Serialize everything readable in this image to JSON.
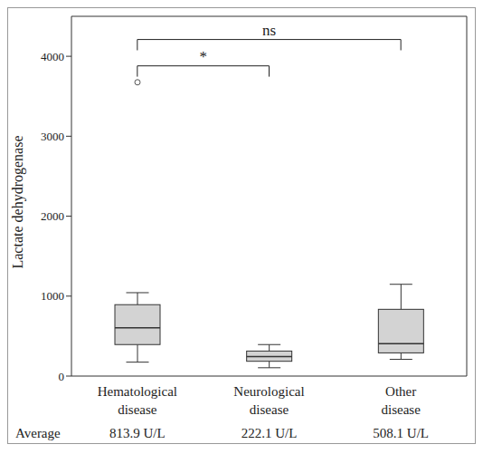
{
  "chart_data": {
    "type": "box",
    "categories": [
      "Hematological disease",
      "Neurological disease",
      "Other disease"
    ],
    "boxes": [
      {
        "min": 174,
        "q1": 394,
        "median": 603,
        "q3": 893,
        "max": 1043,
        "outliers": [
          3675
        ]
      },
      {
        "min": 104,
        "q1": 185,
        "median": 243,
        "q3": 313,
        "max": 394,
        "outliers": []
      },
      {
        "min": 209,
        "q1": 290,
        "median": 406,
        "q3": 835,
        "max": 1148,
        "outliers": []
      }
    ],
    "y_label": "Lactate dehydrogenase",
    "ylim": [
      0,
      4500
    ],
    "yticks": [
      0,
      1000,
      2000,
      3000,
      4000
    ],
    "color": "#d3d3d3",
    "comparisons": [
      {
        "from": "Hematological disease",
        "to": "Neurological disease",
        "label": "*",
        "y": 3880
      },
      {
        "from": "Hematological disease",
        "to": "Other disease",
        "label": "ns",
        "y": 4210
      }
    ],
    "averages": {
      "label": "Average",
      "values": [
        813.9,
        222.1,
        508.1
      ],
      "value_labels": [
        "813.9 U/L",
        "222.1 U/L",
        "508.1 U/L"
      ]
    }
  }
}
